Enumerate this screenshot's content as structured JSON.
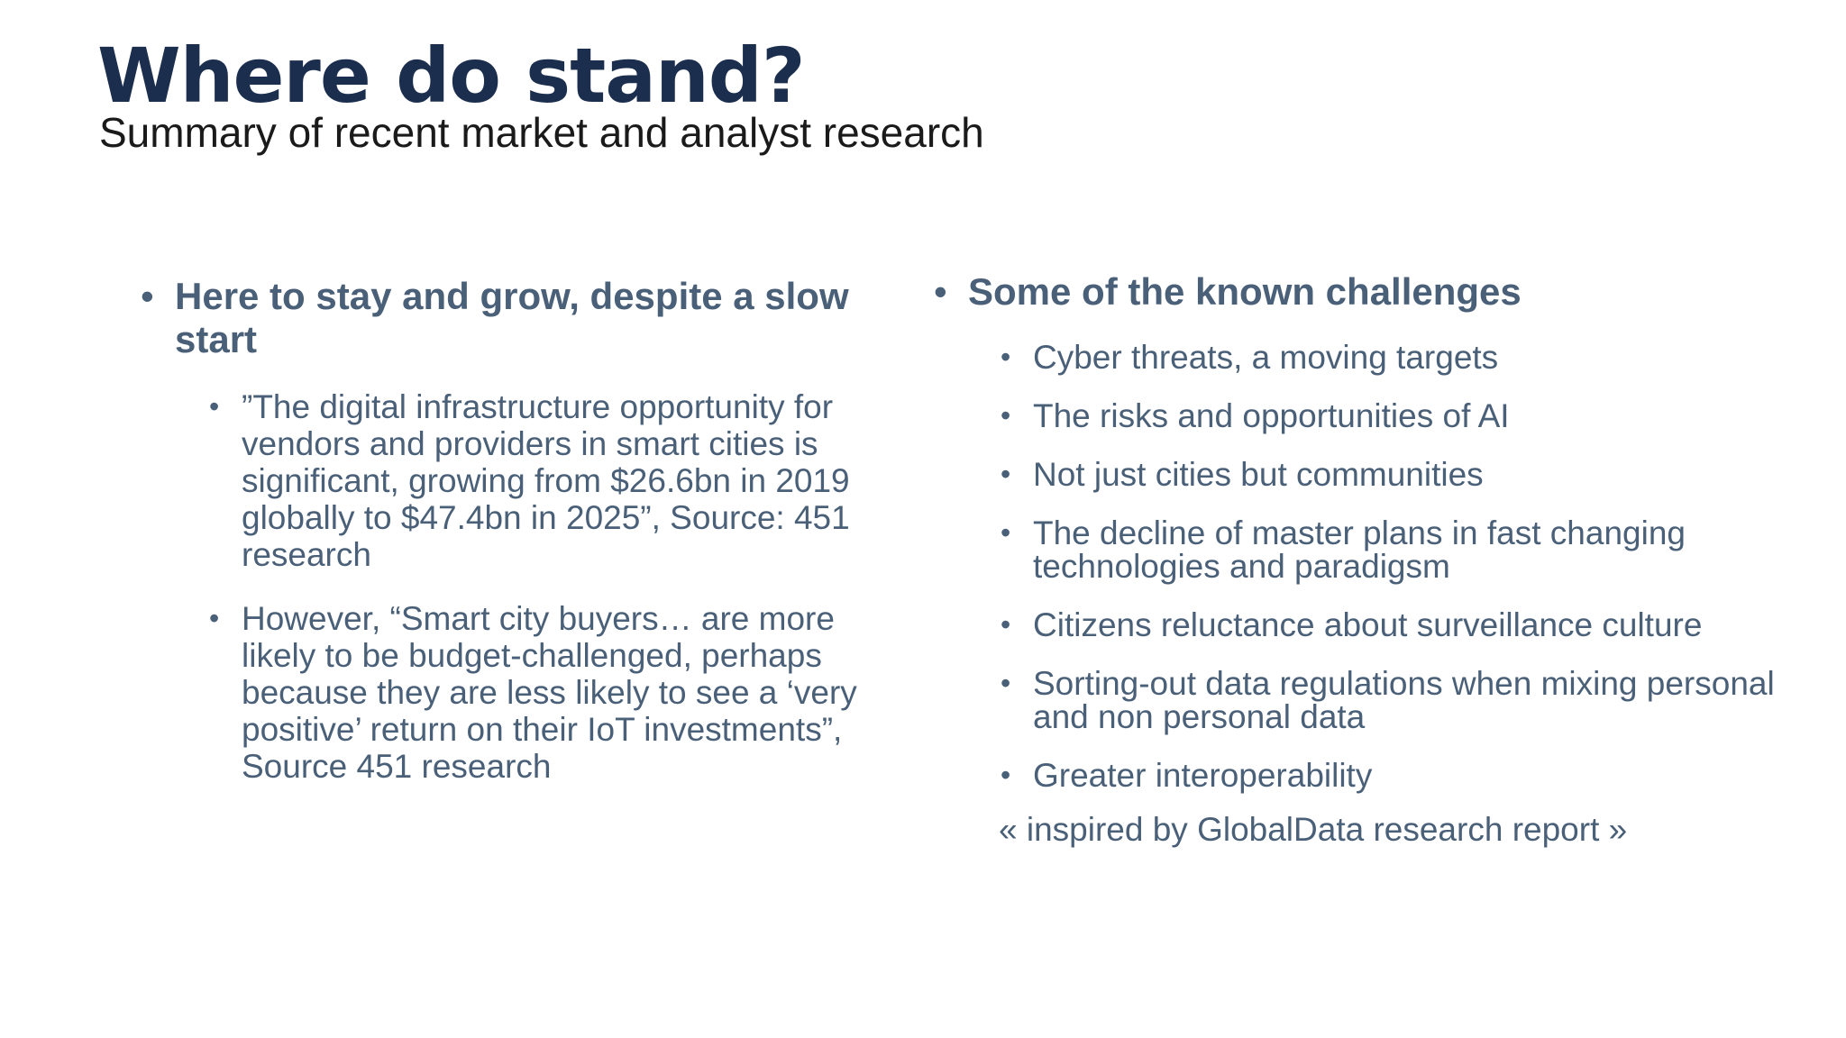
{
  "slide": {
    "title": "Where do stand?",
    "subtitle": "Summary of recent market and analyst research"
  },
  "left": {
    "heading": "Here to stay and grow, despite a slow start",
    "bullet_glyph": "•",
    "items": [
      "”The digital infrastructure opportunity for vendors and providers in smart cities is significant, growing from $26.6bn in 2019 globally to $47.4bn in 2025”, Source: 451 research",
      "However, “Smart city buyers… are more likely to be budget-challenged, perhaps because they are less likely to see a ‘very positive’ return on their IoT investments”, Source 451 research"
    ]
  },
  "right": {
    "heading": "Some of the known challenges",
    "items": [
      "Cyber threats, a moving targets",
      "The risks and opportunities of AI",
      "Not just cities but communities",
      "The decline of master plans in fast changing technologies and paradigsm",
      "Citizens reluctance about surveillance culture",
      "Sorting-out data regulations when mixing personal and non personal data",
      "Greater interoperability"
    ],
    "note": "« inspired by GlobalData research report »"
  }
}
